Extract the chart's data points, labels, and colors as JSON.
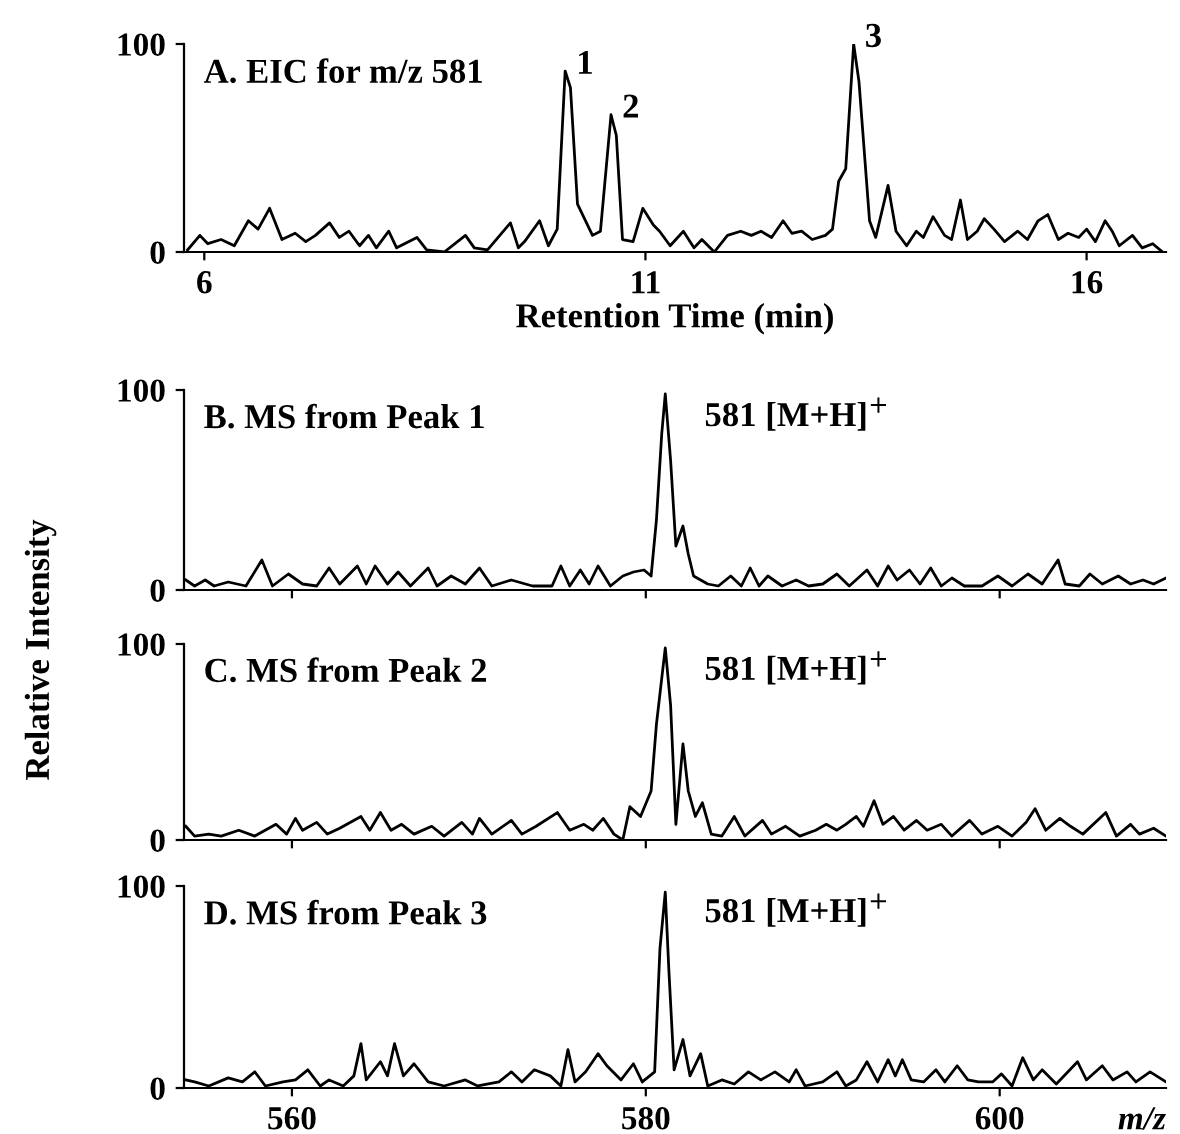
{
  "chart_data": [
    {
      "type": "line",
      "title": "A. EIC for m/z 581",
      "xlabel": "Retention Time (min)",
      "xlim": [
        5.77,
        16.9
      ],
      "xticks": [
        6,
        11,
        16
      ],
      "ylim": [
        0,
        100
      ],
      "yticks": [
        0,
        100
      ],
      "x": [
        5.81,
        5.95,
        6.04,
        6.19,
        6.34,
        6.5,
        6.61,
        6.74,
        6.88,
        7.03,
        7.15,
        7.26,
        7.42,
        7.53,
        7.64,
        7.76,
        7.86,
        7.95,
        8.09,
        8.18,
        8.41,
        8.52,
        8.72,
        8.96,
        9.06,
        9.21,
        9.47,
        9.56,
        9.63,
        9.8,
        9.9,
        10.0,
        10.09,
        10.15,
        10.23,
        10.4,
        10.49,
        10.61,
        10.67,
        10.74,
        10.86,
        10.97,
        11.09,
        11.16,
        11.28,
        11.43,
        11.55,
        11.64,
        11.78,
        11.93,
        12.08,
        12.2,
        12.31,
        12.43,
        12.56,
        12.66,
        12.77,
        12.89,
        13.04,
        13.12,
        13.19,
        13.27,
        13.36,
        13.42,
        13.54,
        13.61,
        13.75,
        13.84,
        13.96,
        14.07,
        14.15,
        14.26,
        14.39,
        14.47,
        14.57,
        14.65,
        14.76,
        14.84,
        14.95,
        15.07,
        15.22,
        15.33,
        15.45,
        15.56,
        15.68,
        15.79,
        15.91,
        16.0,
        16.1,
        16.21,
        16.29,
        16.37,
        16.52,
        16.63,
        16.75,
        16.86
      ],
      "series": [
        {
          "color": "#000000",
          "values": [
            1,
            8,
            4,
            6,
            3,
            15,
            11,
            21,
            6,
            9,
            5,
            8,
            14,
            7,
            10,
            3,
            8,
            2,
            10,
            2,
            7,
            1,
            0,
            8,
            2,
            1,
            14,
            2,
            5,
            15,
            3,
            11,
            87,
            79,
            23,
            8,
            10,
            66,
            56,
            6,
            5,
            21,
            13,
            10,
            3,
            10,
            2,
            6,
            0,
            8,
            10,
            8,
            10,
            7,
            15,
            9,
            10,
            6,
            8,
            11,
            34,
            40,
            100,
            82,
            15,
            7,
            32,
            10,
            3,
            10,
            7,
            17,
            8,
            6,
            25,
            6,
            10,
            16,
            11,
            5,
            10,
            6,
            15,
            18,
            6,
            9,
            7,
            11,
            5,
            15,
            10,
            3,
            8,
            2,
            4,
            0
          ]
        }
      ],
      "annotations": [
        {
          "text": "1",
          "x": 10.09,
          "y": 87
        },
        {
          "text": "2",
          "x": 10.61,
          "y": 66
        },
        {
          "text": "3",
          "x": 13.36,
          "y": 100
        }
      ]
    },
    {
      "type": "line",
      "title": "B. MS from Peak 1",
      "ylabel": "Relative Intensity",
      "xlim": [
        553.9,
        609.4
      ],
      "xticks": [
        560,
        580,
        600
      ],
      "ylim": [
        0,
        100
      ],
      "yticks": [
        0,
        100
      ],
      "tick_labels": "y",
      "x": [
        554.0,
        554.5,
        555.1,
        555.6,
        556.4,
        557.4,
        558.3,
        558.9,
        559.8,
        560.6,
        561.4,
        562.1,
        562.7,
        563.7,
        564.2,
        564.7,
        565.4,
        566.0,
        566.7,
        567.7,
        568.2,
        569.0,
        569.8,
        570.6,
        571.3,
        572.4,
        573.6,
        574.7,
        575.2,
        575.7,
        576.3,
        576.8,
        577.3,
        578.0,
        578.7,
        579.3,
        579.9,
        580.3,
        580.6,
        580.9,
        581.1,
        581.4,
        581.7,
        582.1,
        582.4,
        582.7,
        583.5,
        584.1,
        584.8,
        585.4,
        585.9,
        586.4,
        586.9,
        587.7,
        588.5,
        589.2,
        590.0,
        590.8,
        591.5,
        592.5,
        593.1,
        593.7,
        594.2,
        594.9,
        595.5,
        596.1,
        596.7,
        597.3,
        598.0,
        599.0,
        599.9,
        600.7,
        601.6,
        602.4,
        603.3,
        603.7,
        604.5,
        605.1,
        605.8,
        606.7,
        607.4,
        608.1,
        608.7,
        609.4
      ],
      "series": [
        {
          "color": "#000000",
          "values": [
            5,
            2,
            5,
            2,
            4,
            2,
            15,
            2,
            8,
            3,
            2,
            11,
            3,
            12,
            3,
            12,
            3,
            9,
            2,
            11,
            2,
            7,
            3,
            11,
            2,
            5,
            2,
            2,
            12,
            2,
            10,
            3,
            12,
            2,
            7,
            9,
            10,
            7,
            35,
            78,
            98,
            65,
            22,
            32,
            18,
            7,
            3,
            2,
            7,
            2,
            11,
            2,
            7,
            2,
            5,
            2,
            3,
            8,
            2,
            10,
            2,
            12,
            5,
            10,
            3,
            11,
            2,
            6,
            2,
            2,
            7,
            2,
            8,
            3,
            15,
            3,
            2,
            8,
            3,
            7,
            3,
            5,
            3,
            6
          ]
        }
      ],
      "annotations": [
        "581 [M+H]$^{+}$"
      ]
    },
    {
      "type": "line",
      "title": "C. MS from Peak 2",
      "xlim": [
        553.9,
        609.4
      ],
      "xticks": [
        560,
        580,
        600
      ],
      "ylim": [
        0,
        100
      ],
      "yticks": [
        0,
        100
      ],
      "tick_labels": "y",
      "x": [
        554.0,
        554.5,
        555.3,
        556.0,
        557.0,
        557.9,
        559.1,
        559.7,
        560.2,
        560.6,
        561.4,
        562.0,
        562.7,
        563.9,
        564.4,
        565.0,
        565.6,
        566.2,
        566.9,
        567.9,
        568.6,
        569.6,
        570.2,
        570.6,
        571.3,
        572.4,
        573.0,
        573.8,
        575.0,
        575.7,
        576.5,
        577.0,
        577.6,
        578.2,
        578.7,
        579.1,
        579.7,
        580.3,
        580.6,
        581.1,
        581.4,
        581.7,
        582.1,
        582.4,
        582.8,
        583.2,
        583.7,
        584.3,
        585.0,
        585.6,
        586.6,
        587.1,
        587.9,
        588.7,
        589.6,
        590.2,
        590.8,
        591.3,
        591.9,
        592.3,
        592.9,
        593.4,
        594.0,
        594.6,
        595.3,
        595.9,
        596.7,
        597.3,
        598.3,
        599.0,
        599.9,
        600.7,
        601.5,
        602.0,
        602.6,
        603.4,
        604.0,
        604.7,
        606.0,
        606.6,
        607.4,
        607.9,
        608.7,
        609.4
      ],
      "series": [
        {
          "color": "#000000",
          "values": [
            7,
            2,
            3,
            2,
            5,
            2,
            8,
            3,
            11,
            5,
            9,
            3,
            6,
            12,
            5,
            14,
            5,
            8,
            3,
            7,
            2,
            9,
            3,
            11,
            3,
            10,
            3,
            7,
            14,
            5,
            8,
            5,
            11,
            3,
            0,
            17,
            12,
            25,
            59,
            98,
            69,
            8,
            49,
            25,
            12,
            19,
            3,
            2,
            12,
            2,
            10,
            3,
            7,
            2,
            5,
            8,
            5,
            8,
            12,
            7,
            20,
            8,
            12,
            5,
            10,
            5,
            8,
            2,
            10,
            3,
            7,
            2,
            9,
            16,
            5,
            11,
            7,
            3,
            14,
            2,
            8,
            3,
            6,
            2
          ]
        }
      ],
      "annotations": [
        "581 [M+H]$^{+}$"
      ]
    },
    {
      "type": "line",
      "title": "D. MS from Peak 3",
      "xlabel": "m/z",
      "xlim": [
        553.9,
        609.4
      ],
      "xticks": [
        560,
        580,
        600
      ],
      "ylim": [
        0,
        100
      ],
      "yticks": [
        0,
        100
      ],
      "x": [
        554.0,
        554.5,
        555.3,
        556.4,
        557.2,
        557.9,
        558.5,
        559.5,
        560.2,
        560.9,
        561.6,
        562.1,
        562.9,
        563.5,
        563.9,
        564.2,
        565.0,
        565.4,
        565.8,
        566.3,
        566.9,
        567.7,
        568.6,
        569.8,
        570.5,
        571.7,
        572.4,
        573.0,
        573.7,
        574.6,
        575.2,
        575.6,
        576.0,
        576.6,
        577.3,
        577.8,
        578.6,
        579.3,
        579.8,
        580.5,
        580.8,
        581.1,
        581.3,
        581.6,
        582.1,
        582.5,
        583.1,
        583.5,
        584.3,
        585.0,
        585.8,
        586.5,
        587.3,
        588.1,
        588.5,
        589.0,
        590.0,
        590.8,
        591.3,
        591.9,
        592.5,
        593.1,
        593.7,
        594.1,
        594.5,
        595.0,
        595.7,
        596.4,
        596.9,
        597.6,
        598.2,
        598.8,
        599.6,
        600.1,
        600.7,
        601.3,
        601.9,
        602.4,
        603.2,
        604.4,
        604.9,
        605.8,
        606.4,
        607.2,
        607.7,
        608.5,
        609.4
      ],
      "series": [
        {
          "color": "#000000",
          "values": [
            4,
            3,
            1,
            5,
            3,
            8,
            1,
            3,
            4,
            9,
            1,
            4,
            1,
            6,
            22,
            4,
            13,
            6,
            22,
            6,
            12,
            3,
            1,
            4,
            1,
            3,
            8,
            3,
            9,
            6,
            1,
            19,
            3,
            8,
            17,
            11,
            4,
            12,
            3,
            8,
            69,
            97,
            59,
            9,
            24,
            6,
            17,
            1,
            4,
            2,
            8,
            4,
            8,
            3,
            9,
            1,
            3,
            8,
            1,
            4,
            13,
            3,
            14,
            6,
            14,
            4,
            3,
            9,
            3,
            11,
            4,
            3,
            3,
            7,
            1,
            15,
            4,
            9,
            2,
            13,
            4,
            11,
            4,
            8,
            3,
            8,
            3
          ]
        }
      ],
      "annotations": [
        "581 [M+H]$^{+}$"
      ]
    }
  ]
}
